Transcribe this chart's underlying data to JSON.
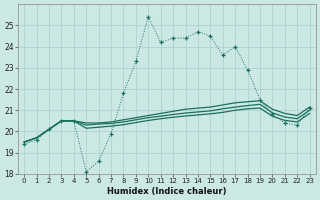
{
  "xlabel": "Humidex (Indice chaleur)",
  "x_values": [
    0,
    1,
    2,
    3,
    4,
    5,
    6,
    7,
    8,
    9,
    10,
    11,
    12,
    13,
    14,
    15,
    16,
    17,
    18,
    19,
    20,
    21,
    22,
    23
  ],
  "main_line": [
    19.4,
    19.6,
    20.1,
    20.5,
    20.5,
    18.1,
    18.6,
    19.9,
    21.8,
    23.3,
    25.4,
    24.2,
    24.4,
    24.4,
    24.7,
    24.5,
    23.6,
    24.0,
    22.9,
    21.5,
    20.8,
    20.4,
    20.3,
    21.1
  ],
  "line2": [
    19.5,
    19.7,
    20.1,
    20.5,
    20.5,
    20.4,
    20.4,
    20.45,
    20.55,
    20.65,
    20.75,
    20.85,
    20.95,
    21.05,
    21.1,
    21.15,
    21.25,
    21.35,
    21.4,
    21.45,
    21.05,
    20.85,
    20.75,
    21.15
  ],
  "line3": [
    19.5,
    19.7,
    20.1,
    20.5,
    20.5,
    20.3,
    20.35,
    20.38,
    20.45,
    20.55,
    20.65,
    20.72,
    20.8,
    20.87,
    20.92,
    20.97,
    21.07,
    21.15,
    21.22,
    21.28,
    20.88,
    20.68,
    20.6,
    21.0
  ],
  "line4": [
    19.5,
    19.7,
    20.1,
    20.5,
    20.5,
    20.15,
    20.2,
    20.25,
    20.32,
    20.42,
    20.52,
    20.6,
    20.67,
    20.73,
    20.78,
    20.83,
    20.9,
    21.0,
    21.07,
    21.1,
    20.72,
    20.52,
    20.45,
    20.85
  ],
  "line_color": "#1a7060",
  "bg_color": "#cce8e4",
  "grid_color": "#aacfcb",
  "ylim": [
    18,
    26
  ],
  "yticks": [
    18,
    19,
    20,
    21,
    22,
    23,
    24,
    25
  ],
  "xlim": [
    -0.5,
    23.5
  ]
}
